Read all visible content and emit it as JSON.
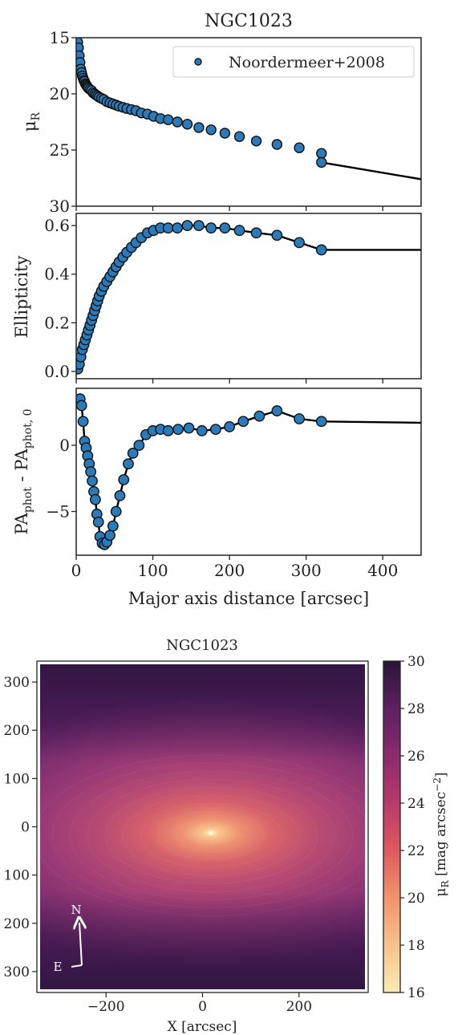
{
  "chart_data": [
    {
      "type": "scatter",
      "title": "NGC1023",
      "xlabel": "",
      "ylabel": "μR",
      "xlim": [
        0,
        450
      ],
      "ylim": [
        30,
        15
      ],
      "y_inverted": true,
      "yticks": [
        "15",
        "20",
        "25",
        "30"
      ],
      "legend": {
        "label": "Noordermeer+2008",
        "position": "top-right"
      },
      "series": [
        {
          "name": "Noordermeer+2008",
          "x": [
            2,
            3,
            4,
            5,
            6,
            7,
            8,
            9,
            10,
            11,
            12,
            13,
            14,
            15,
            16,
            18,
            20,
            22,
            24,
            26,
            28,
            30,
            33,
            36,
            40,
            44,
            48,
            52,
            56,
            61,
            66,
            72,
            78,
            85,
            93,
            101,
            110,
            120,
            132,
            145,
            160,
            176,
            194,
            213,
            235,
            262,
            291,
            320
          ],
          "y": [
            15.4,
            15.9,
            16.6,
            17.2,
            17.8,
            18.1,
            18.4,
            18.6,
            18.8,
            18.9,
            19.1,
            19.2,
            19.3,
            19.4,
            19.5,
            19.6,
            19.7,
            19.9,
            20.0,
            20.1,
            20.2,
            20.3,
            20.4,
            20.5,
            20.7,
            20.8,
            20.9,
            21.0,
            21.1,
            21.2,
            21.3,
            21.4,
            21.5,
            21.7,
            21.8,
            22.0,
            22.2,
            22.3,
            22.5,
            22.7,
            23.0,
            23.2,
            23.5,
            23.8,
            24.2,
            24.5,
            24.8,
            25.3
          ]
        }
      ],
      "fit_line": {
        "x": [
          320,
          450
        ],
        "y": [
          26.1,
          27.6
        ]
      }
    },
    {
      "type": "scatter",
      "title": "",
      "xlabel": "",
      "ylabel": "Ellipticity",
      "xlim": [
        0,
        450
      ],
      "ylim": [
        -0.03,
        0.65
      ],
      "yticks": [
        "0.0",
        "0.2",
        "0.4",
        "0.6"
      ],
      "x": [
        2,
        4,
        6,
        8,
        10,
        12,
        14,
        16,
        18,
        20,
        22,
        24,
        26,
        28,
        30,
        33,
        36,
        40,
        44,
        48,
        52,
        56,
        61,
        66,
        72,
        78,
        85,
        93,
        101,
        110,
        120,
        132,
        145,
        160,
        176,
        194,
        213,
        235,
        262,
        291,
        320
      ],
      "y": [
        0.01,
        0.03,
        0.06,
        0.09,
        0.11,
        0.13,
        0.15,
        0.17,
        0.19,
        0.21,
        0.23,
        0.25,
        0.27,
        0.29,
        0.31,
        0.33,
        0.35,
        0.37,
        0.39,
        0.41,
        0.43,
        0.45,
        0.47,
        0.49,
        0.51,
        0.53,
        0.55,
        0.57,
        0.58,
        0.59,
        0.59,
        0.59,
        0.6,
        0.6,
        0.59,
        0.59,
        0.58,
        0.57,
        0.56,
        0.53,
        0.5
      ],
      "fit_line_extension": {
        "x": [
          320,
          450
        ],
        "y": [
          0.5,
          0.5
        ]
      }
    },
    {
      "type": "scatter",
      "title": "",
      "xlabel": "Major axis distance [arcsec]",
      "ylabel": "PAphot - PAphot, 0",
      "xlim": [
        0,
        450
      ],
      "ylim": [
        -8.3,
        4.3
      ],
      "yticks": [
        "0",
        "−5"
      ],
      "xticks": [
        "0",
        "100",
        "200",
        "300",
        "400"
      ],
      "x": [
        5,
        7,
        9,
        11,
        13,
        15,
        17,
        19,
        21,
        23,
        25,
        27,
        29,
        31,
        34,
        37,
        40,
        44,
        48,
        52,
        57,
        62,
        68,
        74,
        82,
        91,
        100,
        110,
        120,
        133,
        147,
        164,
        182,
        200,
        218,
        239,
        262,
        291,
        320
      ],
      "y": [
        3.5,
        3.0,
        1.8,
        0.3,
        -0.2,
        -0.8,
        -1.4,
        -2.0,
        -2.7,
        -3.5,
        -4.1,
        -5.2,
        -5.8,
        -6.9,
        -7.4,
        -7.5,
        -7.3,
        -6.8,
        -6.1,
        -5.0,
        -3.8,
        -2.6,
        -1.4,
        -0.6,
        0.0,
        0.8,
        1.1,
        1.2,
        1.1,
        1.2,
        1.3,
        1.1,
        1.2,
        1.4,
        1.8,
        2.2,
        2.6,
        2.0,
        1.8
      ],
      "fit_line_extension": {
        "x": [
          320,
          450
        ],
        "y": [
          1.7,
          1.7
        ]
      }
    },
    {
      "type": "heatmap",
      "title": "NGC1023",
      "xlabel": "X [arcsec]",
      "ylabel": "",
      "xlim": [
        -340,
        340
      ],
      "ylim": [
        -340,
        340
      ],
      "xticks": [
        "−200",
        "0",
        "200"
      ],
      "yticks": [
        "300",
        "200",
        "100",
        "0",
        "100",
        "200",
        "300"
      ],
      "center": [
        18,
        -18
      ],
      "colorbar": {
        "label": "μR [mag arcsec−2]",
        "range": [
          16,
          30
        ],
        "ticks": [
          "30",
          "28",
          "26",
          "24",
          "22",
          "20",
          "18",
          "16"
        ]
      },
      "compass": {
        "north": "N",
        "east": "E"
      }
    }
  ]
}
